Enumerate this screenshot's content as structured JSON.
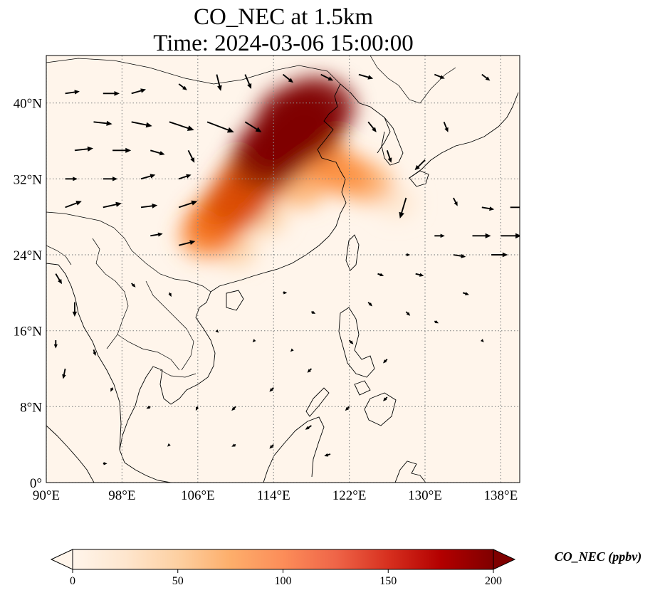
{
  "figure": {
    "title_line1": "CO_NEC at 1.5km",
    "title_line2": "Time: 2024-03-06 15:00:00"
  },
  "map": {
    "extent": {
      "lon_min": 90,
      "lon_max": 140,
      "lat_min": 0,
      "lat_max": 45
    },
    "x_ticks": [
      {
        "value": 90,
        "label": "90°E"
      },
      {
        "value": 98,
        "label": "98°E"
      },
      {
        "value": 106,
        "label": "106°E"
      },
      {
        "value": 114,
        "label": "114°E"
      },
      {
        "value": 122,
        "label": "122°E"
      },
      {
        "value": 130,
        "label": "130°E"
      },
      {
        "value": 138,
        "label": "138°E"
      }
    ],
    "y_ticks": [
      {
        "value": 0,
        "label": "0°"
      },
      {
        "value": 8,
        "label": "8°N"
      },
      {
        "value": 16,
        "label": "16°N"
      },
      {
        "value": 24,
        "label": "24°N"
      },
      {
        "value": 32,
        "label": "32°N"
      },
      {
        "value": 40,
        "label": "40°N"
      }
    ],
    "gridlines": true,
    "colormap": [
      "#fff5eb",
      "#fee6ce",
      "#fdd0a2",
      "#fdae6b",
      "#fd8d3c",
      "#f16913",
      "#d94801",
      "#a63603",
      "#7f0000"
    ],
    "concentration_field": [
      {
        "lon": 116.5,
        "lat": 38.5,
        "value": 210
      },
      {
        "lon": 118.5,
        "lat": 39.5,
        "value": 200
      },
      {
        "lon": 115.5,
        "lat": 36.5,
        "value": 200
      },
      {
        "lon": 114.0,
        "lat": 35.0,
        "value": 190
      },
      {
        "lon": 117.5,
        "lat": 37.0,
        "value": 180
      },
      {
        "lon": 113.0,
        "lat": 33.5,
        "value": 165
      },
      {
        "lon": 111.5,
        "lat": 31.5,
        "value": 150
      },
      {
        "lon": 110.0,
        "lat": 29.5,
        "value": 140
      },
      {
        "lon": 108.0,
        "lat": 27.5,
        "value": 125
      },
      {
        "lon": 107.0,
        "lat": 26.0,
        "value": 105
      },
      {
        "lon": 119.0,
        "lat": 34.0,
        "value": 110
      },
      {
        "lon": 121.5,
        "lat": 32.5,
        "value": 95
      },
      {
        "lon": 124.0,
        "lat": 31.5,
        "value": 80
      },
      {
        "lon": 117.0,
        "lat": 31.0,
        "value": 70
      },
      {
        "lon": 113.0,
        "lat": 28.0,
        "value": 60
      },
      {
        "lon": 110.0,
        "lat": 24.5,
        "value": 40
      },
      {
        "lon": 127.0,
        "lat": 29.5,
        "value": 30
      }
    ],
    "wind_vectors": [
      {
        "lon": 92,
        "lat": 41,
        "u": 7,
        "v": 1
      },
      {
        "lon": 96,
        "lat": 41,
        "u": 8,
        "v": 0
      },
      {
        "lon": 99,
        "lat": 41,
        "u": 7,
        "v": 2
      },
      {
        "lon": 104,
        "lat": 42,
        "u": 4,
        "v": -3
      },
      {
        "lon": 108,
        "lat": 43,
        "u": 2,
        "v": -8
      },
      {
        "lon": 111,
        "lat": 43,
        "u": 3,
        "v": -7
      },
      {
        "lon": 115,
        "lat": 43,
        "u": 5,
        "v": -4
      },
      {
        "lon": 119,
        "lat": 43,
        "u": 6,
        "v": -3
      },
      {
        "lon": 123,
        "lat": 43,
        "u": 7,
        "v": -2
      },
      {
        "lon": 131,
        "lat": 43,
        "u": 5,
        "v": -2
      },
      {
        "lon": 136,
        "lat": 43,
        "u": 4,
        "v": -3
      },
      {
        "lon": 95,
        "lat": 38,
        "u": 9,
        "v": -1
      },
      {
        "lon": 99,
        "lat": 38,
        "u": 10,
        "v": -2
      },
      {
        "lon": 103,
        "lat": 38,
        "u": 12,
        "v": -4
      },
      {
        "lon": 107,
        "lat": 38,
        "u": 13,
        "v": -5
      },
      {
        "lon": 111,
        "lat": 38,
        "u": 8,
        "v": -5
      },
      {
        "lon": 124,
        "lat": 38,
        "u": 4,
        "v": -5
      },
      {
        "lon": 132,
        "lat": 38,
        "u": 2,
        "v": -5
      },
      {
        "lon": 93,
        "lat": 35,
        "u": 9,
        "v": 1
      },
      {
        "lon": 97,
        "lat": 35,
        "u": 9,
        "v": 0
      },
      {
        "lon": 101,
        "lat": 35,
        "u": 7,
        "v": -2
      },
      {
        "lon": 105,
        "lat": 35,
        "u": 3,
        "v": -6
      },
      {
        "lon": 126,
        "lat": 35,
        "u": 2,
        "v": -6
      },
      {
        "lon": 130,
        "lat": 34,
        "u": -5,
        "v": -5
      },
      {
        "lon": 92,
        "lat": 32,
        "u": 6,
        "v": 0
      },
      {
        "lon": 96,
        "lat": 32,
        "u": 7,
        "v": 0
      },
      {
        "lon": 100,
        "lat": 32,
        "u": 7,
        "v": 2
      },
      {
        "lon": 104,
        "lat": 32,
        "u": 6,
        "v": 2
      },
      {
        "lon": 128,
        "lat": 30,
        "u": -3,
        "v": -10
      },
      {
        "lon": 133,
        "lat": 30,
        "u": 2,
        "v": -4
      },
      {
        "lon": 136,
        "lat": 29,
        "u": 6,
        "v": -1
      },
      {
        "lon": 139,
        "lat": 29,
        "u": 7,
        "v": 0
      },
      {
        "lon": 92,
        "lat": 29,
        "u": 8,
        "v": 3
      },
      {
        "lon": 96,
        "lat": 29,
        "u": 9,
        "v": 2
      },
      {
        "lon": 100,
        "lat": 29,
        "u": 8,
        "v": 1
      },
      {
        "lon": 104,
        "lat": 29,
        "u": 9,
        "v": 3
      },
      {
        "lon": 131,
        "lat": 26,
        "u": 5,
        "v": 0
      },
      {
        "lon": 135,
        "lat": 26,
        "u": 9,
        "v": 0
      },
      {
        "lon": 138,
        "lat": 26,
        "u": 10,
        "v": 0
      },
      {
        "lon": 101,
        "lat": 26,
        "u": 6,
        "v": 1
      },
      {
        "lon": 104,
        "lat": 25,
        "u": 8,
        "v": 2
      },
      {
        "lon": 128,
        "lat": 24,
        "u": 2,
        "v": 0
      },
      {
        "lon": 133,
        "lat": 24,
        "u": 6,
        "v": -1
      },
      {
        "lon": 137,
        "lat": 24,
        "u": 8,
        "v": 0
      },
      {
        "lon": 91,
        "lat": 22,
        "u": 3,
        "v": -5
      },
      {
        "lon": 93,
        "lat": 19,
        "u": 0,
        "v": -7
      },
      {
        "lon": 91,
        "lat": 15,
        "u": 0,
        "v": -4
      },
      {
        "lon": 92,
        "lat": 12,
        "u": -1,
        "v": -5
      },
      {
        "lon": 95,
        "lat": 14,
        "u": 1,
        "v": -3
      },
      {
        "lon": 125,
        "lat": 22,
        "u": 3,
        "v": -1
      },
      {
        "lon": 129,
        "lat": 22,
        "u": 4,
        "v": -1
      },
      {
        "lon": 124,
        "lat": 19,
        "u": 2,
        "v": -2
      },
      {
        "lon": 128,
        "lat": 18,
        "u": 2,
        "v": -2
      },
      {
        "lon": 122,
        "lat": 15,
        "u": 2,
        "v": -2
      },
      {
        "lon": 126,
        "lat": 13,
        "u": -2,
        "v": -2
      },
      {
        "lon": 118,
        "lat": 12,
        "u": -2,
        "v": -2
      },
      {
        "lon": 114,
        "lat": 10,
        "u": -2,
        "v": -2
      },
      {
        "lon": 110,
        "lat": 8,
        "u": -2,
        "v": -2
      },
      {
        "lon": 106,
        "lat": 8,
        "u": -1,
        "v": -2
      },
      {
        "lon": 101,
        "lat": 8,
        "u": -2,
        "v": -1
      },
      {
        "lon": 97,
        "lat": 10,
        "u": -1,
        "v": -2
      },
      {
        "lon": 122,
        "lat": 8,
        "u": -2,
        "v": -2
      },
      {
        "lon": 118,
        "lat": 6,
        "u": -3,
        "v": -2
      },
      {
        "lon": 114,
        "lat": 4,
        "u": -2,
        "v": -2
      },
      {
        "lon": 110,
        "lat": 4,
        "u": -2,
        "v": -1
      },
      {
        "lon": 103,
        "lat": 4,
        "u": -1,
        "v": -1
      },
      {
        "lon": 96,
        "lat": 2,
        "u": 2,
        "v": 0
      },
      {
        "lon": 120,
        "lat": 3,
        "u": -3,
        "v": -1
      },
      {
        "lon": 126,
        "lat": 9,
        "u": -2,
        "v": -2
      },
      {
        "lon": 131,
        "lat": 17,
        "u": 2,
        "v": -1
      },
      {
        "lon": 136,
        "lat": 15,
        "u": 1,
        "v": -1
      },
      {
        "lon": 134,
        "lat": 20,
        "u": 3,
        "v": -1
      },
      {
        "lon": 99,
        "lat": 21,
        "u": 2,
        "v": -2
      },
      {
        "lon": 103,
        "lat": 20,
        "u": 1,
        "v": -2
      },
      {
        "lon": 108,
        "lat": 16,
        "u": 1,
        "v": -1
      },
      {
        "lon": 112,
        "lat": 15,
        "u": -1,
        "v": -1
      },
      {
        "lon": 116,
        "lat": 14,
        "u": -1,
        "v": -1
      },
      {
        "lon": 118,
        "lat": 18,
        "u": 2,
        "v": -1
      },
      {
        "lon": 115,
        "lat": 20,
        "u": 2,
        "v": 0
      }
    ]
  },
  "colorbar": {
    "min": 0,
    "max": 200,
    "extend": "both",
    "ticks": [
      {
        "value": 0,
        "label": "0"
      },
      {
        "value": 50,
        "label": "50"
      },
      {
        "value": 100,
        "label": "100"
      },
      {
        "value": 150,
        "label": "150"
      },
      {
        "value": 200,
        "label": "200"
      }
    ],
    "label": "CO_NEC (ppbv)"
  }
}
